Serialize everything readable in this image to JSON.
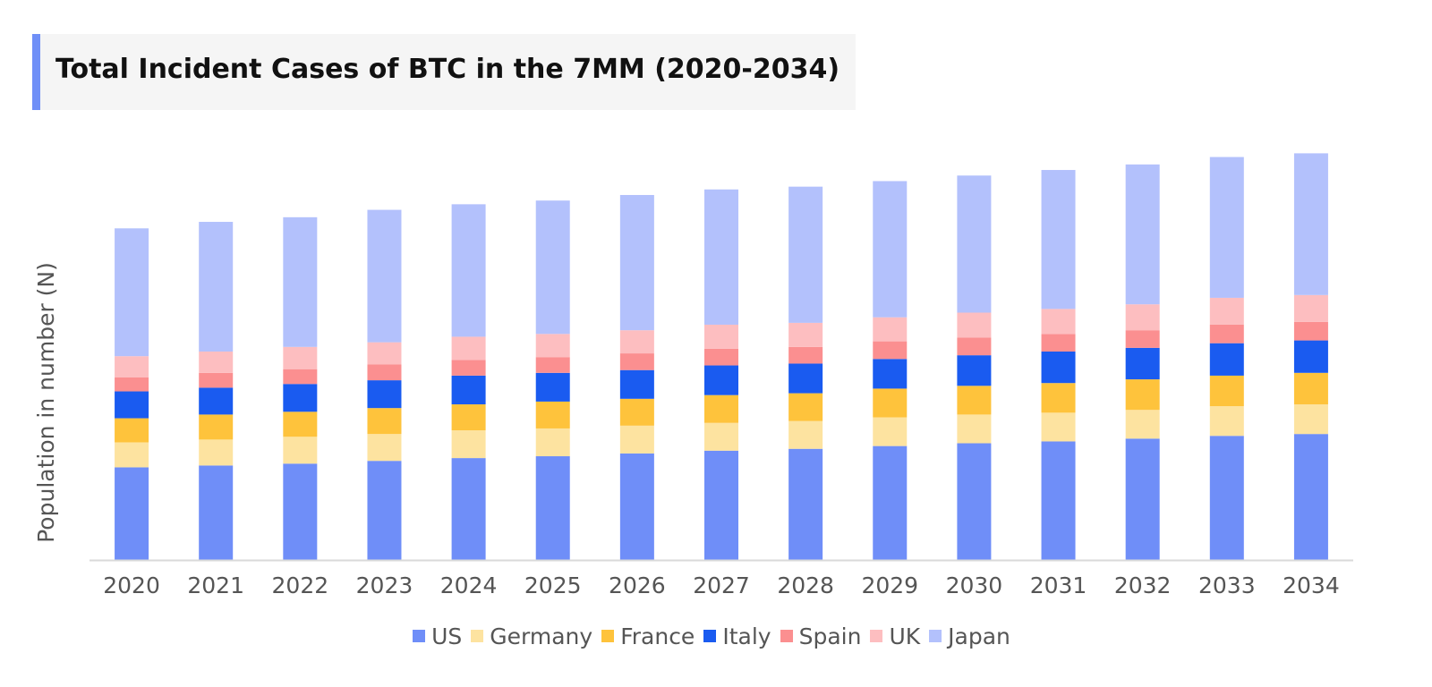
{
  "title": "Total Incident Cases of BTC in the 7MM (2020-2034)",
  "chart_data": {
    "type": "bar",
    "stacked": true,
    "title": "Total Incident Cases of BTC in the 7MM (2020-2034)",
    "xlabel": "",
    "ylabel": "Population in number (N)",
    "ylim": [
      0,
      450
    ],
    "grid": false,
    "legend_position": "bottom",
    "categories": [
      "2020",
      "2021",
      "2022",
      "2023",
      "2024",
      "2025",
      "2026",
      "2027",
      "2028",
      "2029",
      "2030",
      "2031",
      "2032",
      "2033",
      "2034"
    ],
    "series": [
      {
        "name": "US",
        "color": "#6f8ef8",
        "values": [
          100,
          102,
          104,
          107,
          110,
          112,
          115,
          118,
          120,
          123,
          126,
          128,
          131,
          134,
          136
        ]
      },
      {
        "name": "Germany",
        "color": "#fde3a0",
        "values": [
          27,
          28,
          29,
          29,
          30,
          30,
          30,
          30,
          30,
          31,
          31,
          31,
          31,
          32,
          32
        ]
      },
      {
        "name": "France",
        "color": "#fec33c",
        "values": [
          26,
          27,
          27,
          28,
          28,
          29,
          29,
          30,
          30,
          31,
          31,
          32,
          33,
          33,
          34
        ]
      },
      {
        "name": "Italy",
        "color": "#1a5bf0",
        "values": [
          29,
          29,
          30,
          30,
          31,
          31,
          31,
          32,
          32,
          32,
          33,
          34,
          34,
          35,
          35
        ]
      },
      {
        "name": "Spain",
        "color": "#fb8f90",
        "values": [
          15,
          16,
          16,
          17,
          17,
          17,
          18,
          18,
          18,
          19,
          19,
          19,
          19,
          20,
          20
        ]
      },
      {
        "name": "UK",
        "color": "#fdbec0",
        "values": [
          23,
          23,
          24,
          24,
          25,
          25,
          25,
          26,
          26,
          26,
          27,
          27,
          28,
          29,
          29
        ]
      },
      {
        "name": "Japan",
        "color": "#b3c1fc",
        "values": [
          138,
          140,
          140,
          143,
          143,
          144,
          146,
          146,
          147,
          147,
          148,
          150,
          151,
          152,
          153
        ]
      }
    ]
  }
}
